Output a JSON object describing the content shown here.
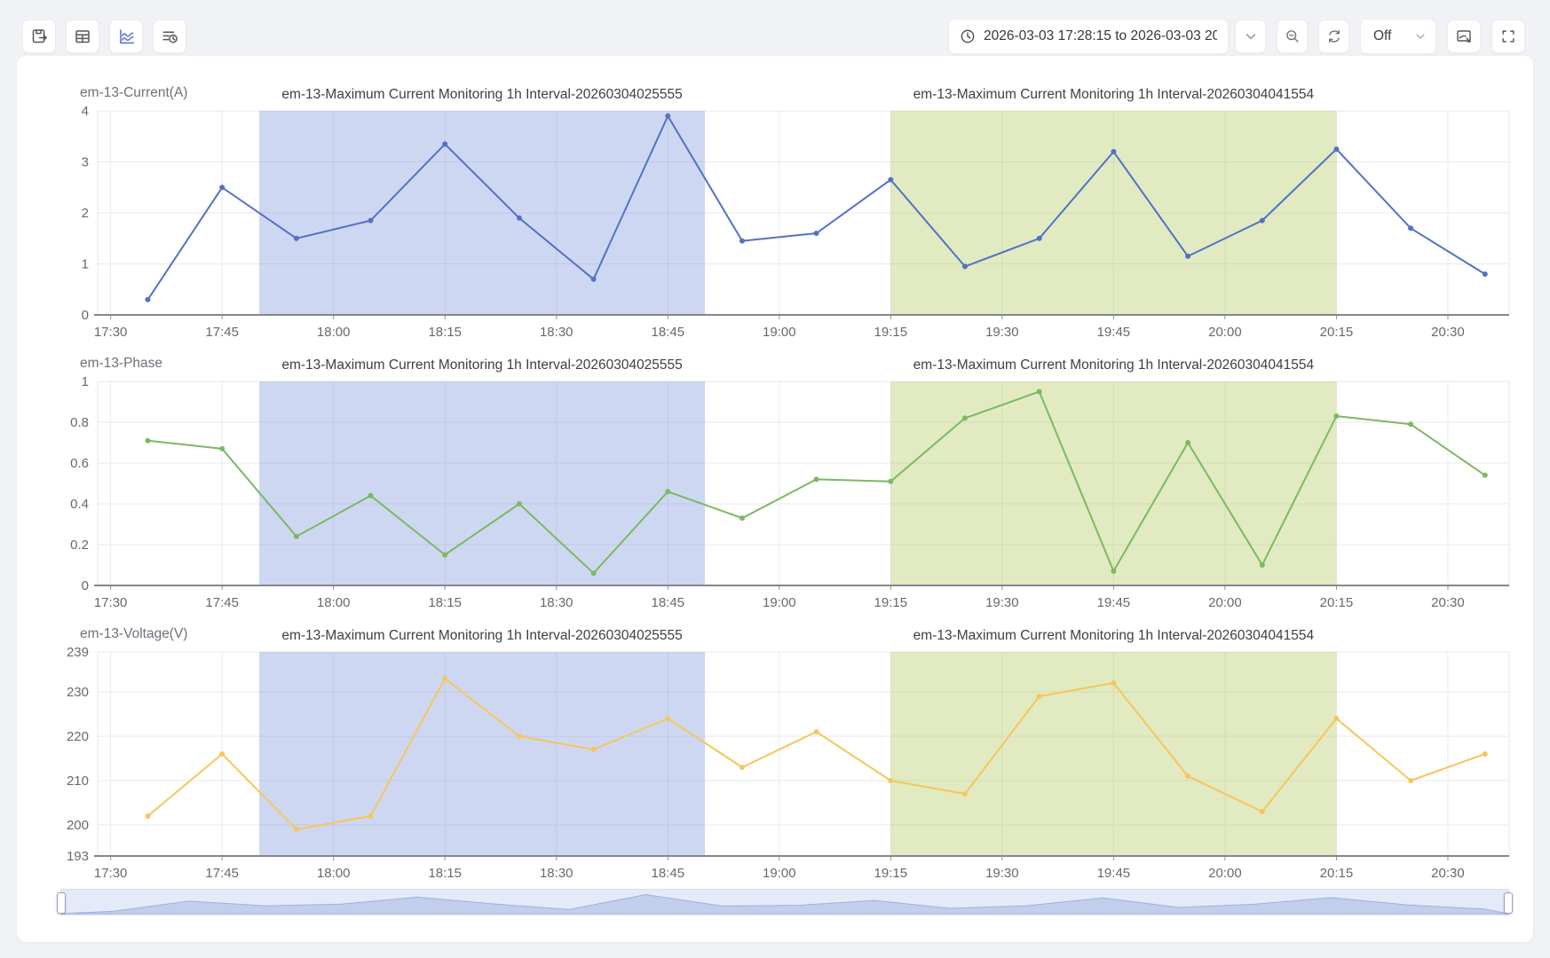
{
  "toolbar": {
    "time_range_value": "2026-03-03 17:28:15 to 2026-03-03 20",
    "auto_refresh_value": "Off"
  },
  "chart_data": [
    {
      "type": "line",
      "axis_name": "em-13-Current(A)",
      "color": "#5471c6",
      "x_start": "17:28:15",
      "x_end": "20:38:15",
      "x_ticks": [
        "17:30",
        "17:45",
        "18:00",
        "18:15",
        "18:30",
        "18:45",
        "19:00",
        "19:15",
        "19:30",
        "19:45",
        "20:00",
        "20:15",
        "20:30"
      ],
      "y_range": [
        0,
        4
      ],
      "y_ticks": [
        "0",
        "1",
        "2",
        "3",
        "4"
      ],
      "x": [
        "17:35",
        "17:45",
        "17:55",
        "18:05",
        "18:15",
        "18:25",
        "18:35",
        "18:45",
        "18:55",
        "19:05",
        "19:15",
        "19:25",
        "19:35",
        "19:45",
        "19:55",
        "20:05",
        "20:15",
        "20:25",
        "20:35"
      ],
      "values": [
        0.3,
        2.5,
        1.5,
        1.85,
        3.35,
        1.9,
        0.7,
        3.9,
        1.45,
        1.6,
        2.65,
        0.95,
        1.5,
        3.2,
        1.15,
        1.85,
        3.25,
        1.7,
        0.8
      ],
      "regions": [
        {
          "label": "em-13-Maximum Current Monitoring 1h Interval-20260304025555",
          "start": "17:50",
          "end": "18:50",
          "fill": "rgba(106,135,215,0.33)"
        },
        {
          "label": "em-13-Maximum Current Monitoring 1h Interval-20260304041554",
          "start": "19:15",
          "end": "20:15",
          "fill": "rgba(175,201,92,0.38)"
        }
      ]
    },
    {
      "type": "line",
      "axis_name": "em-13-Phase",
      "color": "#7cb962",
      "x_start": "17:28:15",
      "x_end": "20:38:15",
      "x_ticks": [
        "17:30",
        "17:45",
        "18:00",
        "18:15",
        "18:30",
        "18:45",
        "19:00",
        "19:15",
        "19:30",
        "19:45",
        "20:00",
        "20:15",
        "20:30"
      ],
      "y_range": [
        0,
        1
      ],
      "y_ticks": [
        "0",
        "0.2",
        "0.4",
        "0.6",
        "0.8",
        "1"
      ],
      "x": [
        "17:35",
        "17:45",
        "17:55",
        "18:05",
        "18:15",
        "18:25",
        "18:35",
        "18:45",
        "18:55",
        "19:05",
        "19:15",
        "19:25",
        "19:35",
        "19:45",
        "19:55",
        "20:05",
        "20:15",
        "20:25",
        "20:35"
      ],
      "values": [
        0.71,
        0.67,
        0.24,
        0.44,
        0.15,
        0.4,
        0.06,
        0.46,
        0.33,
        0.52,
        0.51,
        0.82,
        0.95,
        0.07,
        0.7,
        0.1,
        0.83,
        0.79,
        0.54
      ],
      "regions": [
        {
          "label": "em-13-Maximum Current Monitoring 1h Interval-20260304025555",
          "start": "17:50",
          "end": "18:50",
          "fill": "rgba(106,135,215,0.33)"
        },
        {
          "label": "em-13-Maximum Current Monitoring 1h Interval-20260304041554",
          "start": "19:15",
          "end": "20:15",
          "fill": "rgba(175,201,92,0.38)"
        }
      ]
    },
    {
      "type": "line",
      "axis_name": "em-13-Voltage(V)",
      "color": "#f6c65b",
      "x_start": "17:28:15",
      "x_end": "20:38:15",
      "x_ticks": [
        "17:30",
        "17:45",
        "18:00",
        "18:15",
        "18:30",
        "18:45",
        "19:00",
        "19:15",
        "19:30",
        "19:45",
        "20:00",
        "20:15",
        "20:30"
      ],
      "y_range": [
        193,
        239
      ],
      "y_ticks": [
        "193",
        "200",
        "210",
        "220",
        "230",
        "239"
      ],
      "x": [
        "17:35",
        "17:45",
        "17:55",
        "18:05",
        "18:15",
        "18:25",
        "18:35",
        "18:45",
        "18:55",
        "19:05",
        "19:15",
        "19:25",
        "19:35",
        "19:45",
        "19:55",
        "20:05",
        "20:15",
        "20:25",
        "20:35"
      ],
      "values": [
        202,
        216,
        199,
        202,
        233,
        220,
        217,
        224,
        213,
        221,
        210,
        207,
        229,
        232,
        211,
        203,
        224,
        210,
        216
      ],
      "regions": [
        {
          "label": "em-13-Maximum Current Monitoring 1h Interval-20260304025555",
          "start": "17:50",
          "end": "18:50",
          "fill": "rgba(106,135,215,0.33)"
        },
        {
          "label": "em-13-Maximum Current Monitoring 1h Interval-20260304041554",
          "start": "19:15",
          "end": "20:15",
          "fill": "rgba(175,201,92,0.38)"
        }
      ]
    }
  ]
}
